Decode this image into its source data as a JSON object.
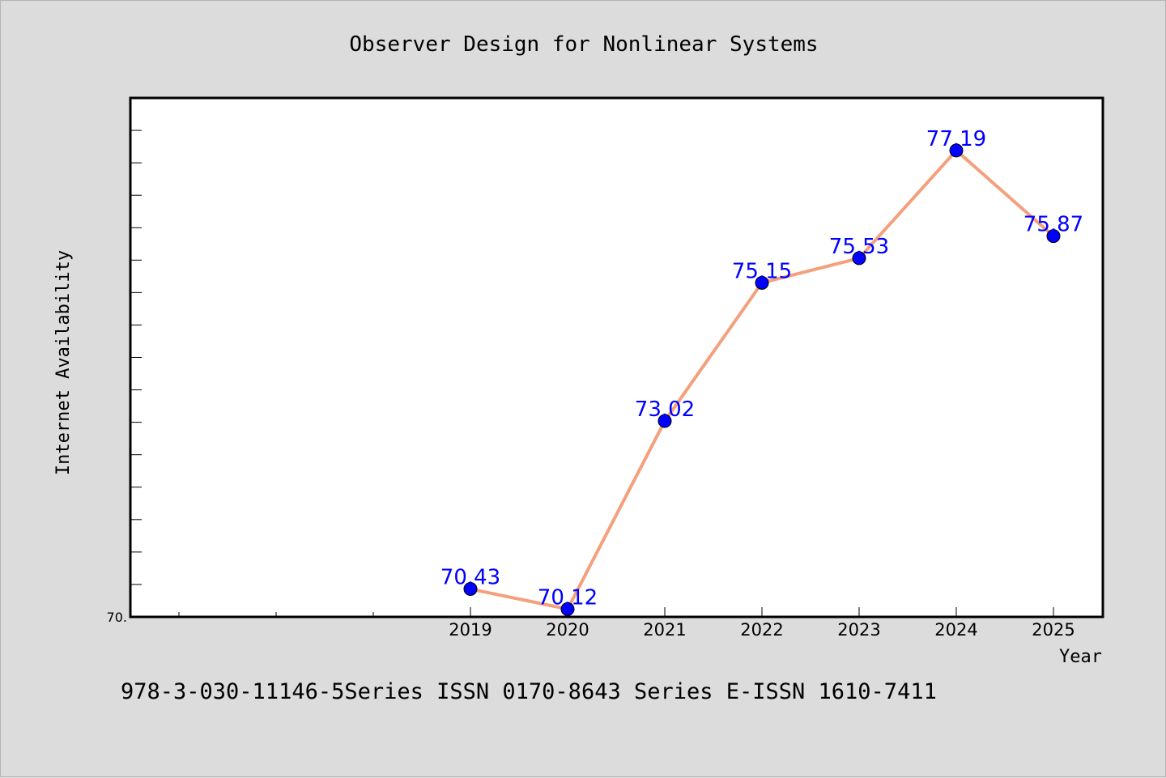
{
  "chart_data": {
    "type": "line",
    "title": "Observer Design for Nonlinear Systems",
    "xlabel": "Year",
    "ylabel": "Internet Availability",
    "categories": [
      "2019",
      "2020",
      "2021",
      "2022",
      "2023",
      "2024",
      "2025"
    ],
    "series": [
      {
        "values": [
          70.43,
          70.12,
          73.02,
          75.15,
          75.53,
          77.19,
          75.87
        ]
      }
    ],
    "data_labels": [
      "70.43",
      "70.12",
      "73.02",
      "75.15",
      "75.53",
      "77.19",
      "75.87"
    ],
    "ylim": [
      70.0,
      78.0
    ],
    "y_tick_label": "70.",
    "grid": false,
    "line_color": "#f4a07c",
    "marker_color": "#0000ff",
    "label_color": "#0000ff",
    "plot_background": "#ffffff",
    "page_background": "#dcdcdc"
  },
  "footnote": "978-3-030-11146-5Series ISSN 0170-8643 Series E-ISSN 1610-7411"
}
